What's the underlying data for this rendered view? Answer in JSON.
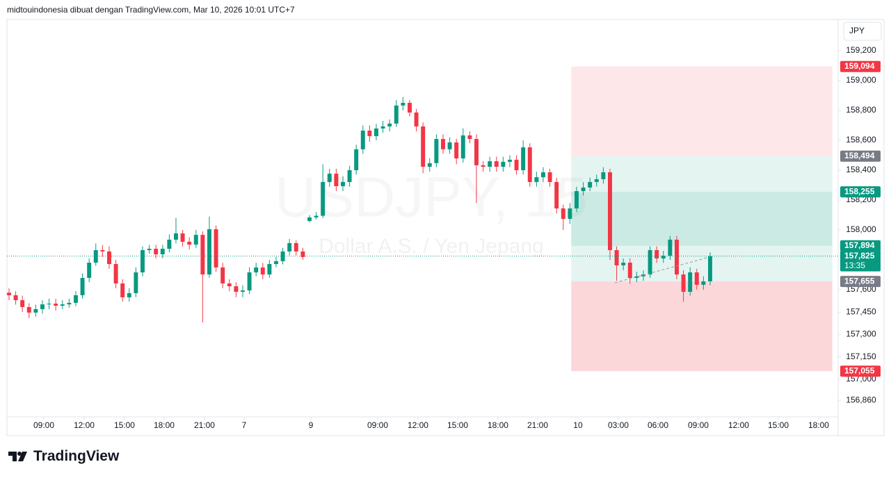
{
  "header": "midtouindonesia dibuat dengan TradingView.com, Mar 10, 2026 10:01 UTC+7",
  "logo": "TradingView",
  "chart_data": {
    "type": "candlestick",
    "watermark": "USDJPY, 15",
    "watermark_subtitle": "Dollar A.S. / Yen Jepang",
    "currency": "JPY",
    "up_color": "#089981",
    "down_color": "#f23645",
    "xlim": [
      -0.31,
      124.17
    ],
    "ylim": [
      156.749,
      159.409
    ],
    "xticks": [
      {
        "value": 5.21,
        "label": "09:00"
      },
      {
        "value": 11.25,
        "label": "12:00"
      },
      {
        "value": 17.29,
        "label": "15:00"
      },
      {
        "value": 23.23,
        "label": "18:00"
      },
      {
        "value": 29.27,
        "label": "21:00"
      },
      {
        "value": 35.21,
        "label": "7"
      },
      {
        "value": 45.21,
        "label": "9"
      },
      {
        "value": 55.21,
        "label": "09:00"
      },
      {
        "value": 61.25,
        "label": "12:00"
      },
      {
        "value": 67.19,
        "label": "15:00"
      },
      {
        "value": 73.23,
        "label": "18:00"
      },
      {
        "value": 79.17,
        "label": "21:00"
      },
      {
        "value": 85.21,
        "label": "10"
      },
      {
        "value": 91.25,
        "label": "03:00"
      },
      {
        "value": 97.19,
        "label": "06:00"
      },
      {
        "value": 103.23,
        "label": "09:00"
      },
      {
        "value": 109.27,
        "label": "12:00"
      },
      {
        "value": 115.21,
        "label": "15:00"
      },
      {
        "value": 121.25,
        "label": "18:00"
      }
    ],
    "yticks": [
      {
        "value": 159.2,
        "label": "159,200"
      },
      {
        "value": 159.0,
        "label": "159,000"
      },
      {
        "value": 158.8,
        "label": "158,800"
      },
      {
        "value": 158.6,
        "label": "158,600"
      },
      {
        "value": 158.4,
        "label": "158,400"
      },
      {
        "value": 158.2,
        "label": "158,200"
      },
      {
        "value": 158.0,
        "label": "158,000"
      },
      {
        "value": 157.6,
        "label": "157,600"
      },
      {
        "value": 157.45,
        "label": "157,450"
      },
      {
        "value": 157.3,
        "label": "157,300"
      },
      {
        "value": 157.15,
        "label": "157,150"
      },
      {
        "value": 157.0,
        "label": "157,000"
      },
      {
        "value": 156.86,
        "label": "156,860"
      }
    ],
    "open": [
      157.58,
      157.563,
      157.53,
      157.484,
      157.447,
      157.47,
      157.502,
      157.507,
      157.493,
      157.502,
      157.512,
      157.563,
      157.679,
      157.781,
      157.865,
      157.856,
      157.772,
      157.642,
      157.549,
      157.577,
      157.716,
      157.865,
      157.874,
      157.837,
      157.874,
      157.935,
      157.977,
      157.921,
      157.902,
      157.967,
      157.702,
      158.005,
      157.749,
      157.642,
      157.623,
      157.586,
      157.595,
      157.716,
      157.749,
      157.702,
      157.772,
      157.791,
      157.856,
      157.912,
      157.856,
      158.06,
      158.084,
      158.095,
      158.321,
      158.377,
      158.293,
      158.321,
      158.4,
      158.54,
      158.665,
      158.628,
      158.679,
      158.693,
      158.712,
      158.833,
      158.851,
      158.786,
      158.693,
      158.423,
      158.447,
      158.609,
      158.54,
      158.586,
      158.479,
      158.633,
      158.609,
      158.433,
      158.423,
      158.46,
      158.423,
      158.456,
      158.47,
      158.4,
      158.553,
      158.321,
      158.353,
      158.386,
      158.321,
      158.144,
      158.074,
      158.144,
      158.26,
      158.284,
      158.321,
      158.34,
      158.386,
      157.865,
      157.763,
      157.781,
      157.679,
      157.69,
      157.702,
      157.865,
      157.809,
      157.828,
      157.935,
      157.702,
      157.586,
      157.716,
      157.633,
      157.656
    ],
    "high": [
      157.61,
      157.59,
      157.56,
      157.51,
      157.5,
      157.53,
      157.54,
      157.54,
      157.53,
      157.54,
      157.59,
      157.71,
      157.81,
      157.91,
      157.9,
      157.89,
      157.8,
      157.67,
      157.61,
      157.75,
      157.89,
      157.9,
      157.9,
      157.9,
      157.97,
      158.08,
      158.0,
      157.95,
      158.0,
      157.99,
      158.09,
      158.03,
      157.78,
      157.67,
      157.65,
      157.63,
      157.75,
      157.78,
      157.78,
      157.8,
      157.82,
      157.88,
      157.94,
      157.93,
      157.88,
      158.1,
      158.12,
      158.44,
      158.41,
      158.41,
      158.36,
      158.43,
      158.57,
      158.7,
      158.7,
      158.71,
      158.73,
      158.74,
      158.87,
      158.89,
      158.87,
      158.81,
      158.72,
      158.48,
      158.64,
      158.64,
      158.62,
      158.61,
      158.68,
      158.66,
      158.64,
      158.46,
      158.49,
      158.49,
      158.49,
      158.5,
      158.5,
      158.6,
      158.58,
      158.39,
      158.42,
      158.41,
      158.35,
      158.17,
      158.18,
      158.29,
      158.32,
      158.35,
      158.37,
      158.42,
      158.41,
      157.89,
      157.81,
      157.81,
      157.72,
      157.73,
      157.89,
      157.89,
      157.86,
      157.96,
      157.96,
      157.73,
      157.75,
      157.74,
      157.69,
      157.85
    ],
    "low": [
      157.53,
      157.5,
      157.45,
      157.41,
      157.42,
      157.44,
      157.47,
      157.46,
      157.47,
      157.48,
      157.49,
      157.54,
      157.65,
      157.76,
      157.82,
      157.74,
      157.61,
      157.52,
      157.52,
      157.55,
      157.69,
      157.84,
      157.81,
      157.81,
      157.85,
      157.91,
      157.89,
      157.87,
      157.88,
      157.38,
      157.68,
      157.72,
      157.61,
      157.59,
      157.55,
      157.55,
      157.57,
      157.69,
      157.67,
      157.68,
      157.75,
      157.77,
      157.83,
      157.83,
      157.8,
      158.05,
      158.07,
      158.08,
      158.29,
      158.26,
      158.26,
      158.29,
      158.37,
      158.51,
      158.59,
      158.6,
      158.65,
      158.66,
      158.69,
      158.8,
      158.76,
      158.66,
      158.38,
      158.39,
      158.42,
      158.51,
      158.51,
      158.44,
      158.45,
      158.58,
      158.18,
      158.39,
      158.39,
      158.39,
      158.39,
      158.42,
      158.37,
      158.37,
      158.29,
      158.29,
      158.32,
      158.29,
      158.11,
      158.0,
      158.04,
      158.12,
      158.23,
      158.26,
      158.29,
      158.31,
      157.8,
      157.66,
      157.73,
      157.64,
      157.65,
      157.66,
      157.68,
      157.78,
      157.78,
      157.8,
      157.67,
      157.52,
      157.56,
      157.6,
      157.6,
      157.63
    ],
    "close": [
      157.563,
      157.53,
      157.484,
      157.447,
      157.47,
      157.502,
      157.507,
      157.493,
      157.502,
      157.512,
      157.563,
      157.679,
      157.781,
      157.865,
      157.856,
      157.772,
      157.642,
      157.549,
      157.577,
      157.716,
      157.865,
      157.874,
      157.837,
      157.874,
      157.935,
      157.977,
      157.921,
      157.902,
      157.967,
      157.702,
      158.005,
      157.749,
      157.642,
      157.623,
      157.586,
      157.595,
      157.716,
      157.749,
      157.702,
      157.772,
      157.791,
      157.856,
      157.912,
      157.856,
      157.819,
      158.084,
      158.095,
      158.321,
      158.377,
      158.293,
      158.321,
      158.4,
      158.54,
      158.665,
      158.628,
      158.679,
      158.693,
      158.712,
      158.833,
      158.851,
      158.786,
      158.693,
      158.423,
      158.447,
      158.609,
      158.54,
      158.586,
      158.479,
      158.633,
      158.609,
      158.433,
      158.423,
      158.46,
      158.423,
      158.456,
      158.47,
      158.4,
      158.553,
      158.321,
      158.353,
      158.386,
      158.321,
      158.144,
      158.074,
      158.144,
      158.26,
      158.284,
      158.321,
      158.34,
      158.386,
      157.865,
      157.763,
      157.781,
      157.679,
      157.69,
      157.702,
      157.865,
      157.809,
      157.828,
      157.935,
      157.702,
      157.586,
      157.716,
      157.633,
      157.656,
      157.825
    ],
    "zones": [
      {
        "start": 84.2,
        "end": 123.3,
        "from": 159.094,
        "to": 158.494,
        "color": "rgba(242,54,69,0.12)"
      },
      {
        "start": 84.2,
        "end": 123.3,
        "from": 158.494,
        "to": 157.655,
        "color": "rgba(8,153,129,0.11)"
      },
      {
        "start": 84.2,
        "end": 123.3,
        "from": 158.255,
        "to": 157.894,
        "color": "rgba(8,153,129,0.11)"
      },
      {
        "start": 84.2,
        "end": 123.3,
        "from": 157.655,
        "to": 157.055,
        "color": "rgba(242,54,69,0.2)"
      }
    ],
    "price_line": {
      "value": 157.825,
      "color": "#089981"
    },
    "price_labels": [
      {
        "value": 159.094,
        "label": "159,094",
        "color": "#f23645"
      },
      {
        "value": 158.494,
        "label": "158,494",
        "color": "#787b86"
      },
      {
        "value": 158.255,
        "label": "158,255",
        "color": "#089981"
      },
      {
        "value": 157.894,
        "label": "157,894",
        "color": "#089981"
      },
      {
        "value": 157.825,
        "label": "157,825",
        "sublabel": "13:35",
        "color": "#089981"
      },
      {
        "value": 157.655,
        "label": "157,655",
        "color": "#787b86"
      },
      {
        "value": 157.055,
        "label": "157,055",
        "color": "#f23645"
      }
    ]
  }
}
